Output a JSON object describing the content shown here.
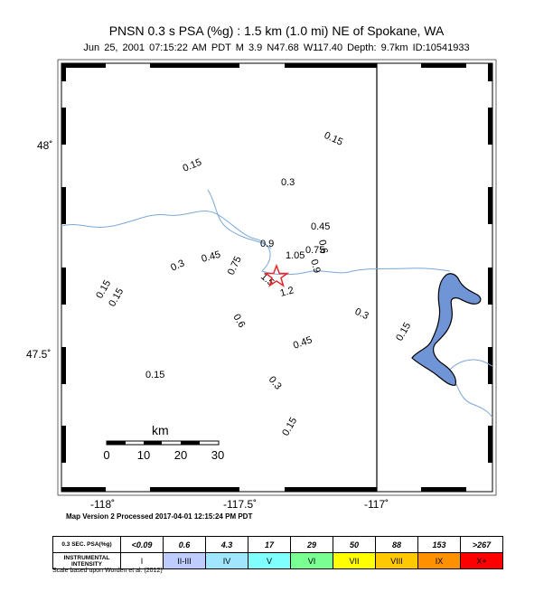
{
  "title": "PNSN 0.3 s PSA (%g) : 1.5 km (1.0 mi) NE of Spokane, WA",
  "subtitle": "Jun 25, 2001 07:15:22 AM PDT   M 3.9   N47.68 W117.40   Depth: 9.7km   ID:10541933",
  "axes": {
    "x_ticks": [
      "-118˚",
      "-117.5˚",
      "-117˚"
    ],
    "y_ticks": [
      "48˚",
      "47.5˚"
    ]
  },
  "scale_bar": {
    "unit": "km",
    "labels": [
      "0",
      "10",
      "20",
      "30"
    ]
  },
  "contour_labels": [
    "0.15",
    "0.15",
    "0.3",
    "0.45",
    "0.9",
    "1.05",
    "0.75",
    "0.6",
    "0.3",
    "0.45",
    "0.75",
    "0.9",
    "1.5",
    "1.2",
    "0.15",
    "0.15",
    "0.6",
    "0.3",
    "0.45",
    "0.15",
    "0.15",
    "0.3",
    "0.15"
  ],
  "epicenter": {
    "symbol": "star-icon",
    "color": "#e8262b"
  },
  "processed_note": "Map Version 2 Processed 2017-04-01 12:15:24 PM PDT",
  "legend": {
    "psa_header": "0.3 SEC. PSA(%g)",
    "psa_values": [
      "<0.09",
      "0.6",
      "4.3",
      "17",
      "29",
      "50",
      "88",
      "153",
      ">267"
    ],
    "intensity_header": "INSTRUMENTAL INTENSITY",
    "intensity_values": [
      "I",
      "II-III",
      "IV",
      "V",
      "VI",
      "VII",
      "VIII",
      "IX",
      "X+"
    ],
    "intensity_colors": [
      "#ffffff",
      "#bfccff",
      "#a0e6ff",
      "#80ffff",
      "#7aff93",
      "#ffff00",
      "#ffc800",
      "#ff9100",
      "#ff0000"
    ]
  },
  "scale_note": "Scale based upon Worden et al. (2012)",
  "colors": {
    "water": "#7095d6",
    "river": "#7aa8d8",
    "border": "#000000"
  }
}
